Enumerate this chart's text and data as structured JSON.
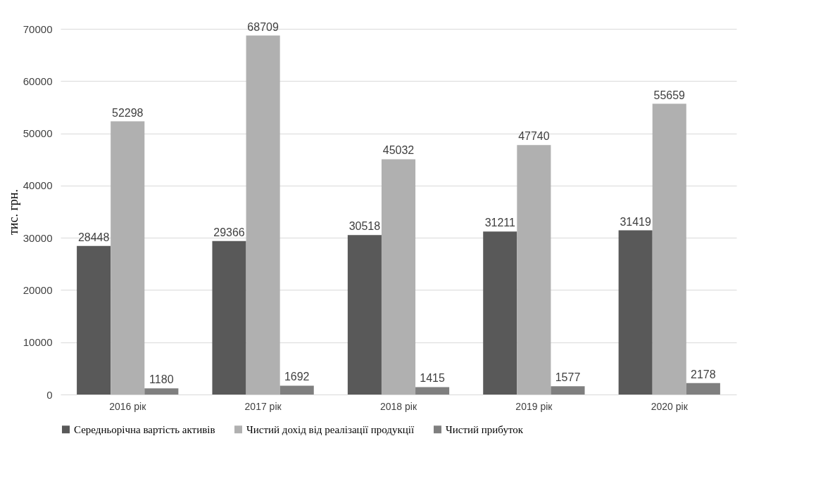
{
  "chart_data": {
    "type": "bar",
    "categories": [
      "2016 рік",
      "2017 рік",
      "2018 рік",
      "2019 рік",
      "2020 рік"
    ],
    "ylabel": "тис. грн.",
    "ylim": [
      0,
      70000
    ],
    "yticks": [
      0,
      10000,
      20000,
      30000,
      40000,
      50000,
      60000,
      70000
    ],
    "grid": "y",
    "legend": "bottom",
    "data_labels": true,
    "series": [
      {
        "name": "Середньорічна вартість активів",
        "color": "#595959",
        "values": [
          28448,
          29366,
          30518,
          31211,
          31419
        ]
      },
      {
        "name": "Чистий дохід від реалізації продукції",
        "color": "#b0b0b0",
        "values": [
          52298,
          68709,
          45032,
          47740,
          55659
        ]
      },
      {
        "name": "Чистий прибуток",
        "color": "#7f7f7f",
        "values": [
          1180,
          1692,
          1415,
          1577,
          2178
        ]
      }
    ]
  }
}
